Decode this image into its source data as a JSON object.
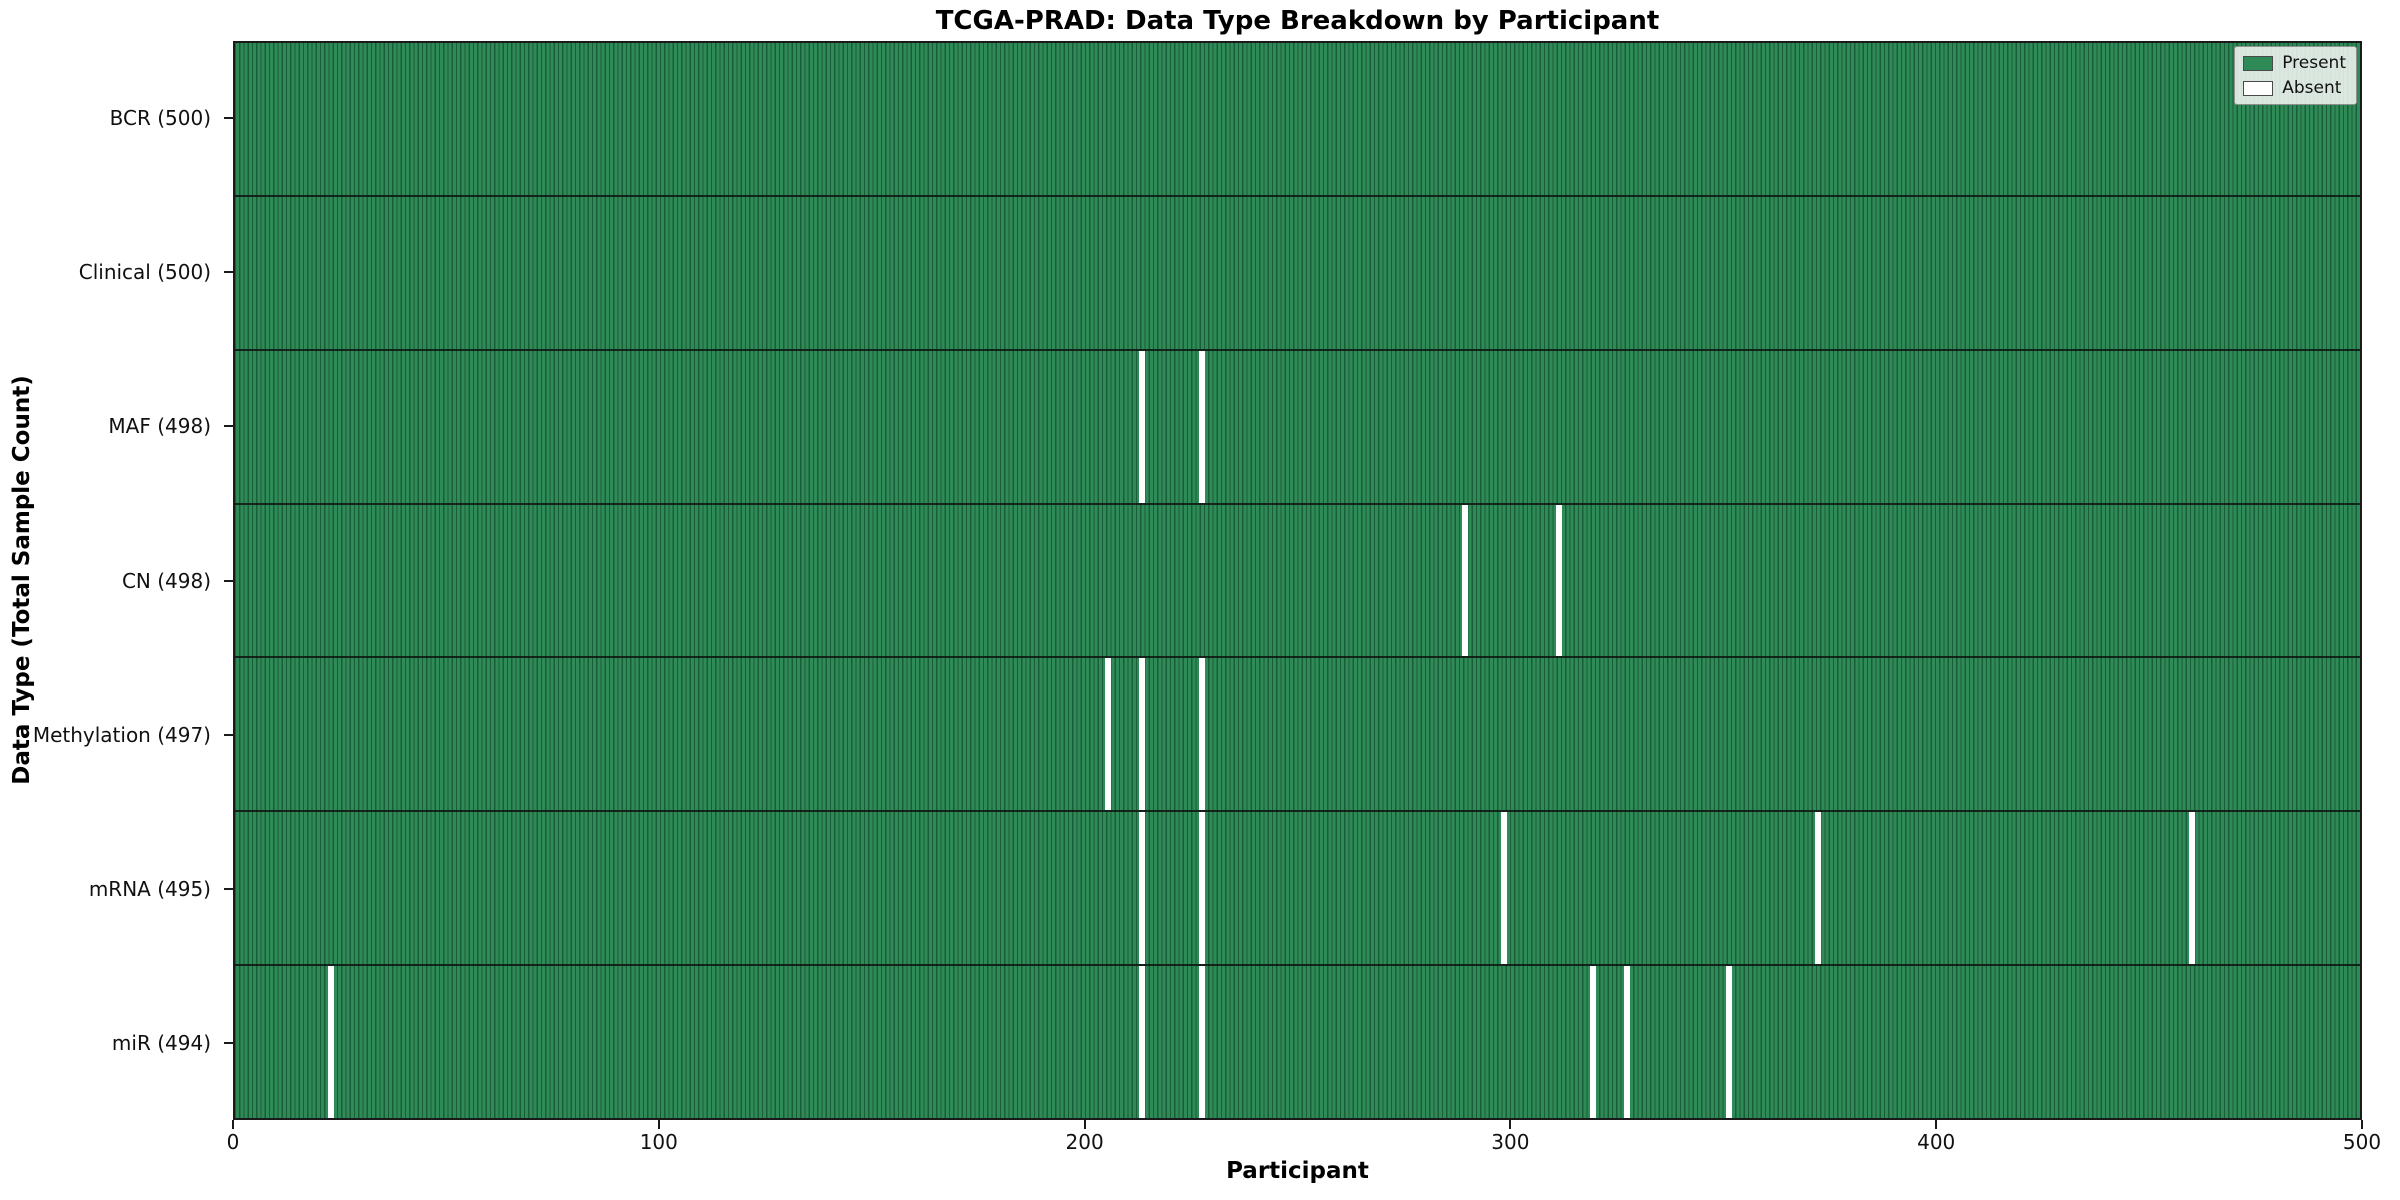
{
  "chart_data": {
    "type": "heatmap",
    "title": "TCGA-PRAD: Data Type Breakdown by Participant",
    "xlabel": "Participant",
    "ylabel": "Data Type (Total Sample Count)",
    "x_range": [
      0,
      500
    ],
    "x_ticks": [
      0,
      100,
      200,
      300,
      400,
      500
    ],
    "n_participants": 500,
    "grid": false,
    "legend_position": "upper right",
    "colors": {
      "present": "#2e8b57",
      "absent": "#ffffff",
      "bar_edge": "#083821"
    },
    "legend": [
      {
        "label": "Present",
        "color": "#2e8b57"
      },
      {
        "label": "Absent",
        "color": "#ffffff"
      }
    ],
    "rows": [
      {
        "label": "BCR (500)",
        "data_type": "BCR",
        "present_count": 500,
        "absent_participants": []
      },
      {
        "label": "Clinical (500)",
        "data_type": "Clinical",
        "present_count": 500,
        "absent_participants": []
      },
      {
        "label": "MAF (498)",
        "data_type": "MAF",
        "present_count": 498,
        "absent_participants": [
          213,
          227
        ]
      },
      {
        "label": "CN (498)",
        "data_type": "CN",
        "present_count": 498,
        "absent_participants": [
          289,
          311
        ]
      },
      {
        "label": "Methylation (497)",
        "data_type": "Methylation",
        "present_count": 497,
        "absent_participants": [
          205,
          213,
          227
        ]
      },
      {
        "label": "mRNA (495)",
        "data_type": "mRNA",
        "present_count": 495,
        "absent_participants": [
          213,
          227,
          298,
          372,
          460
        ]
      },
      {
        "label": "miR (494)",
        "data_type": "miR",
        "present_count": 494,
        "absent_participants": [
          22,
          213,
          227,
          319,
          327,
          351
        ]
      }
    ]
  }
}
